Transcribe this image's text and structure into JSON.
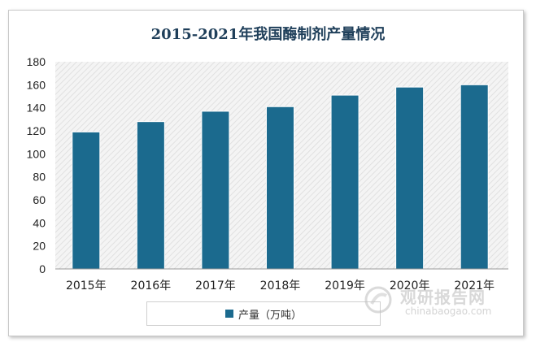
{
  "chart_data": {
    "type": "bar",
    "title": "2015-2021年我国酶制剂产量情况",
    "categories": [
      "2015年",
      "2016年",
      "2017年",
      "2018年",
      "2019年",
      "2020年",
      "2021年"
    ],
    "series": [
      {
        "name": "产量（万吨）",
        "values": [
          119,
          128,
          137,
          141,
          151,
          158,
          160
        ]
      }
    ],
    "y_ticks": [
      "0",
      "20",
      "40",
      "60",
      "80",
      "100",
      "120",
      "140",
      "160",
      "180"
    ],
    "ylim": [
      0,
      180
    ],
    "grid": false,
    "legend": "bottom",
    "colors": {
      "bar": "#1b6a8e",
      "plot_background": "hatched light gray"
    }
  },
  "watermark": {
    "text_cn": "观研报告网",
    "url": "chinabaogao.com"
  }
}
